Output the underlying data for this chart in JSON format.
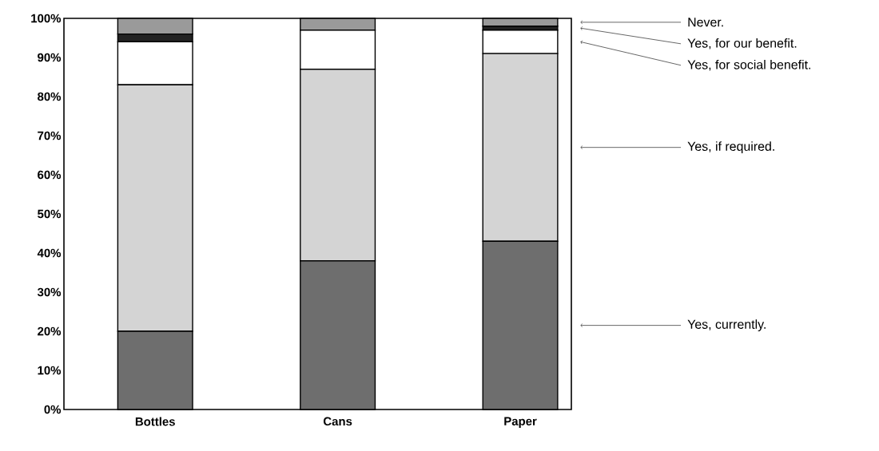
{
  "chart_data": {
    "type": "bar",
    "stacked": true,
    "categories": [
      "Bottles",
      "Cans",
      "Paper"
    ],
    "series": [
      {
        "name": "Yes, currently.",
        "color": "#6e6e6e",
        "values": [
          20,
          38,
          43
        ]
      },
      {
        "name": "Yes, if required.",
        "color": "#d4d4d4",
        "values": [
          63,
          49,
          48
        ]
      },
      {
        "name": "Yes, for social benefit.",
        "color": "#ffffff",
        "values": [
          11,
          10,
          6
        ]
      },
      {
        "name": "Yes, for our benefit.",
        "color": "#222222",
        "values": [
          2,
          0,
          1
        ]
      },
      {
        "name": "Never.",
        "color": "#9a9a9a",
        "values": [
          4,
          3,
          2
        ]
      }
    ],
    "ylim": [
      0,
      100
    ],
    "yticks": [
      {
        "value": 0,
        "label": "0%"
      },
      {
        "value": 10,
        "label": "10%"
      },
      {
        "value": 20,
        "label": "20%"
      },
      {
        "value": 30,
        "label": "30%"
      },
      {
        "value": 40,
        "label": "40%"
      },
      {
        "value": 50,
        "label": "50%"
      },
      {
        "value": 60,
        "label": "60%"
      },
      {
        "value": 70,
        "label": "70%"
      },
      {
        "value": 80,
        "label": "80%"
      },
      {
        "value": 90,
        "label": "90%"
      },
      {
        "value": 100,
        "label": "100%"
      }
    ],
    "grid": false,
    "legend": false
  }
}
